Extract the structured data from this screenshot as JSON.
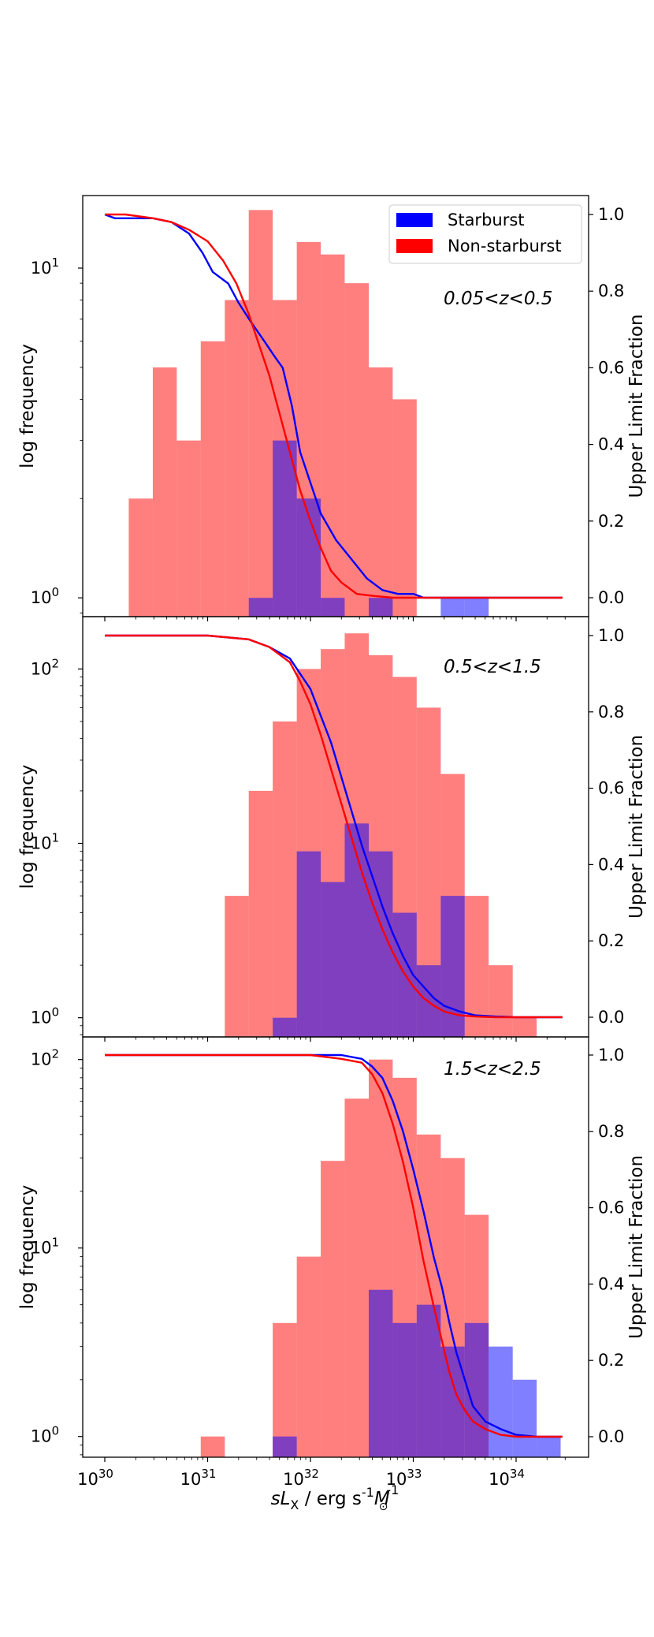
{
  "chart_data": {
    "type": "bar",
    "x_scale": "log",
    "y_scale": "log",
    "xlabel_parts": {
      "pre": "sL",
      "sub": "X",
      "mid": " / erg s",
      "sup1": "-1",
      "mid2": "M",
      "sub2": "⊙",
      "sup2": "-1"
    },
    "x_ticks": [
      {
        "exp": "30"
      },
      {
        "exp": "31"
      },
      {
        "exp": "32"
      },
      {
        "exp": "33"
      },
      {
        "exp": "34"
      }
    ],
    "bin_edges_log": [
      30.0,
      30.233,
      30.467,
      30.7,
      30.933,
      31.167,
      31.4,
      31.633,
      31.867,
      32.1,
      32.333,
      32.567,
      32.8,
      33.033,
      33.267,
      33.5,
      33.733,
      33.967,
      34.2,
      34.433
    ],
    "legend": [
      {
        "label": "Starburst",
        "color": "#0000ff"
      },
      {
        "label": "Non-starburst",
        "color": "#ff0000"
      }
    ],
    "colors": {
      "starburst_bar": "#0000ff",
      "nonstarburst_bar": "#ff0000",
      "bar_alpha": 0.5
    },
    "ylabel_left": "log frequency",
    "ylabel_right": "Upper Limit Fraction",
    "right_ticks": [
      "0.0",
      "0.2",
      "0.4",
      "0.6",
      "0.8",
      "1.0"
    ],
    "panels": [
      {
        "label": "0.05<z<0.5",
        "ylim_log": [
          -0.057,
          1.22
        ],
        "y_ticks": [
          {
            "base": "10",
            "exp": "0"
          },
          {
            "base": "10",
            "exp": "1"
          }
        ],
        "nonstarburst_counts": [
          0,
          2,
          5,
          3,
          6,
          8,
          15,
          8,
          12,
          11,
          9,
          5,
          4,
          0,
          0,
          0,
          0,
          0,
          0
        ],
        "starburst_counts": [
          0,
          0,
          0,
          0,
          0,
          0,
          1,
          3,
          2,
          1,
          0,
          1,
          0,
          0,
          1,
          1,
          0,
          0,
          0
        ],
        "starburst_curve": {
          "x": [
            30.0,
            30.1,
            30.25,
            30.47,
            30.65,
            30.82,
            30.95,
            31.05,
            31.2,
            31.3,
            31.42,
            31.55,
            31.65,
            31.73,
            31.82,
            31.9,
            32.0,
            32.1,
            32.25,
            32.4,
            32.55,
            32.7,
            32.85,
            33.0,
            33.1,
            33.3,
            33.5,
            34.45
          ],
          "y": [
            1.0,
            0.99,
            0.99,
            0.99,
            0.98,
            0.95,
            0.9,
            0.85,
            0.82,
            0.77,
            0.72,
            0.67,
            0.63,
            0.6,
            0.5,
            0.38,
            0.3,
            0.22,
            0.15,
            0.1,
            0.05,
            0.02,
            0.01,
            0.01,
            0.0,
            0.0,
            0.0,
            0.0
          ]
        },
        "nonstarburst_curve": {
          "x": [
            30.0,
            30.2,
            30.47,
            30.65,
            30.82,
            31.0,
            31.15,
            31.28,
            31.4,
            31.5,
            31.6,
            31.7,
            31.8,
            31.9,
            32.0,
            32.1,
            32.2,
            32.3,
            32.45,
            32.6,
            32.8,
            33.0,
            33.5,
            34.45
          ],
          "y": [
            1.0,
            1.0,
            0.99,
            0.98,
            0.96,
            0.93,
            0.88,
            0.82,
            0.74,
            0.66,
            0.58,
            0.48,
            0.38,
            0.28,
            0.2,
            0.13,
            0.07,
            0.04,
            0.01,
            0.005,
            0.0,
            0.0,
            0.0,
            0.0
          ]
        }
      },
      {
        "label": "0.5<z<1.5",
        "ylim_log": [
          -0.11,
          2.3
        ],
        "y_ticks": [
          {
            "base": "10",
            "exp": "0"
          },
          {
            "base": "10",
            "exp": "1"
          },
          {
            "base": "10",
            "exp": "2"
          }
        ],
        "nonstarburst_counts": [
          0,
          0,
          0,
          0,
          0,
          5,
          20,
          50,
          100,
          130,
          160,
          120,
          90,
          60,
          25,
          5,
          2,
          1,
          0
        ],
        "starburst_counts": [
          0,
          0,
          0,
          0,
          0,
          0,
          0,
          1,
          9,
          6,
          13,
          9,
          4,
          2,
          5,
          0,
          0,
          0,
          0
        ],
        "starburst_curve": {
          "x": [
            30.0,
            31.0,
            31.4,
            31.6,
            31.8,
            31.9,
            32.0,
            32.1,
            32.2,
            32.3,
            32.4,
            32.5,
            32.6,
            32.7,
            32.8,
            32.9,
            33.0,
            33.1,
            33.2,
            33.3,
            33.45,
            33.6,
            33.8,
            34.0,
            34.45
          ],
          "y": [
            1.0,
            1.0,
            0.99,
            0.97,
            0.94,
            0.9,
            0.86,
            0.79,
            0.72,
            0.63,
            0.54,
            0.45,
            0.37,
            0.29,
            0.22,
            0.16,
            0.11,
            0.08,
            0.05,
            0.03,
            0.015,
            0.005,
            0.002,
            0.0,
            0.0
          ]
        },
        "nonstarburst_curve": {
          "x": [
            30.0,
            31.0,
            31.4,
            31.6,
            31.8,
            31.9,
            32.0,
            32.1,
            32.2,
            32.3,
            32.4,
            32.5,
            32.6,
            32.7,
            32.8,
            32.9,
            33.0,
            33.1,
            33.2,
            33.3,
            33.45,
            33.6,
            33.8,
            34.0,
            34.45
          ],
          "y": [
            1.0,
            1.0,
            0.99,
            0.97,
            0.93,
            0.88,
            0.82,
            0.74,
            0.65,
            0.56,
            0.47,
            0.38,
            0.3,
            0.23,
            0.17,
            0.12,
            0.08,
            0.05,
            0.03,
            0.015,
            0.005,
            0.002,
            0.0,
            0.0,
            0.0
          ]
        }
      },
      {
        "label": "1.5<z<2.5",
        "ylim_log": [
          -0.11,
          2.12
        ],
        "y_ticks": [
          {
            "base": "10",
            "exp": "0"
          },
          {
            "base": "10",
            "exp": "1"
          },
          {
            "base": "10",
            "exp": "2"
          }
        ],
        "nonstarburst_counts": [
          0,
          0,
          0,
          0,
          1,
          0,
          0,
          4,
          9,
          29,
          62,
          100,
          80,
          40,
          30,
          15,
          0,
          0,
          0
        ],
        "starburst_counts": [
          0,
          0,
          0,
          0,
          0,
          0,
          0,
          1,
          0,
          0,
          0,
          6,
          4,
          5,
          3,
          4,
          3,
          2,
          1
        ],
        "starburst_curve": {
          "x": [
            30.0,
            31.5,
            32.0,
            32.3,
            32.5,
            32.6,
            32.7,
            32.8,
            32.9,
            33.0,
            33.1,
            33.2,
            33.28,
            33.35,
            33.42,
            33.5,
            33.58,
            33.7,
            33.85,
            34.0,
            34.2,
            34.45
          ],
          "y": [
            1.0,
            1.0,
            1.0,
            1.0,
            0.99,
            0.97,
            0.94,
            0.88,
            0.8,
            0.7,
            0.59,
            0.47,
            0.39,
            0.3,
            0.22,
            0.15,
            0.08,
            0.04,
            0.02,
            0.005,
            0.0,
            0.0
          ]
        },
        "nonstarburst_curve": {
          "x": [
            30.0,
            31.5,
            32.0,
            32.3,
            32.5,
            32.6,
            32.7,
            32.8,
            32.9,
            33.0,
            33.1,
            33.2,
            33.28,
            33.35,
            33.42,
            33.5,
            33.58,
            33.7,
            33.85,
            34.0,
            34.2,
            34.45
          ],
          "y": [
            1.0,
            1.0,
            1.0,
            0.99,
            0.98,
            0.95,
            0.9,
            0.82,
            0.72,
            0.6,
            0.46,
            0.34,
            0.25,
            0.17,
            0.11,
            0.07,
            0.04,
            0.02,
            0.005,
            0.0,
            0.0,
            0.0
          ]
        }
      }
    ]
  }
}
